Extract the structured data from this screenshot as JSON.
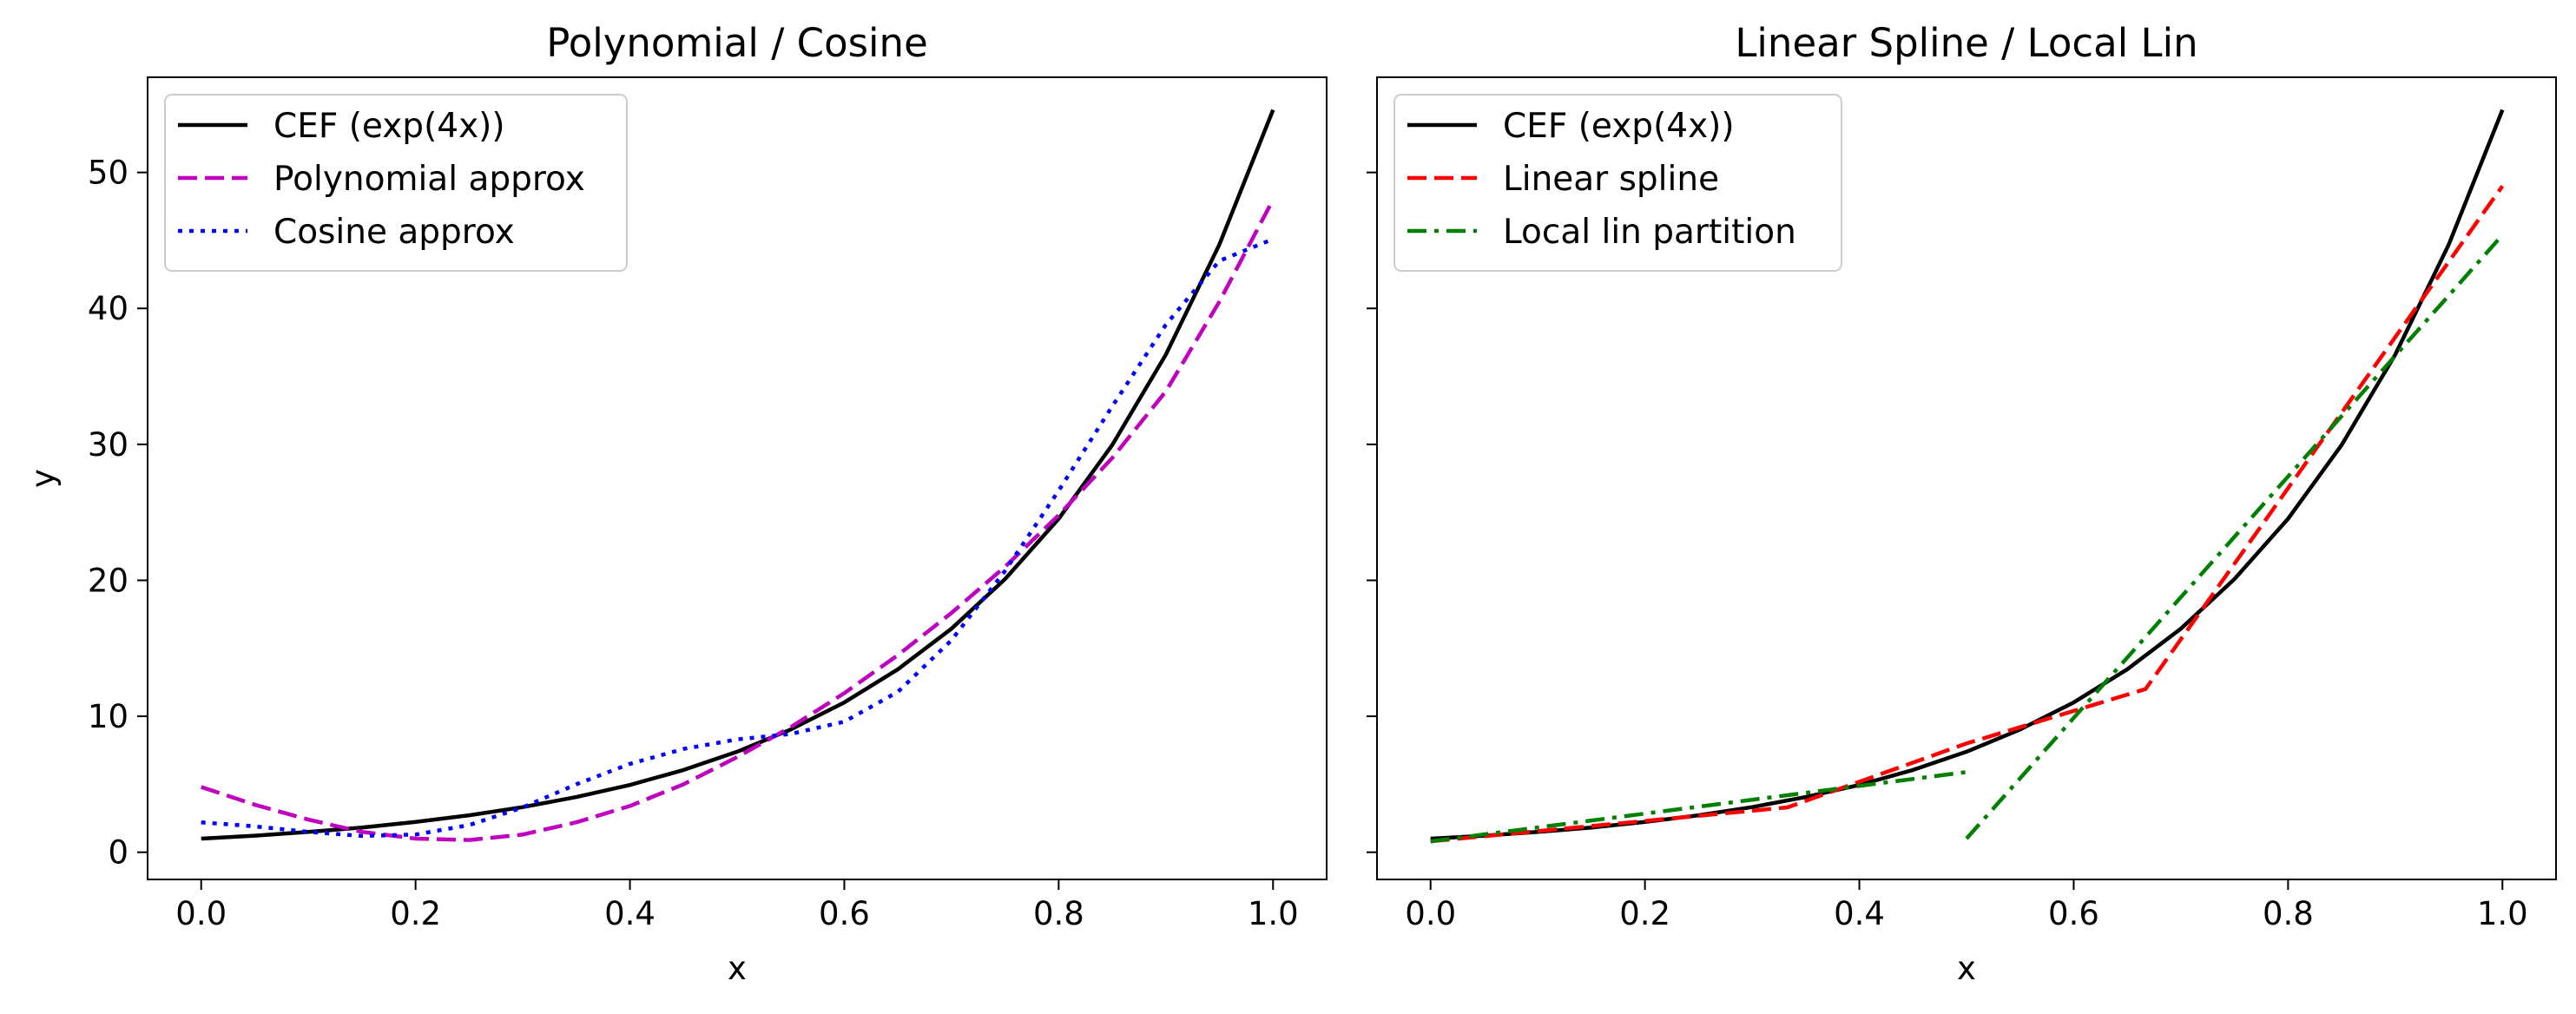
{
  "chart_data": [
    {
      "type": "line",
      "title": "Polynomial / Cosine",
      "xlabel": "x",
      "ylabel": "y",
      "xlim": [
        -0.05,
        1.05
      ],
      "ylim": [
        -2,
        57
      ],
      "xticks": [
        "0.0",
        "0.2",
        "0.4",
        "0.6",
        "0.8",
        "1.0"
      ],
      "yticks": [
        "0",
        "10",
        "20",
        "30",
        "40",
        "50"
      ],
      "grid": false,
      "legend_position": "top-left",
      "series": [
        {
          "name": "CEF (exp(4x))",
          "color": "#000000",
          "style": "solid",
          "x": [
            0,
            0.05,
            0.1,
            0.15,
            0.2,
            0.25,
            0.3,
            0.35,
            0.4,
            0.45,
            0.5,
            0.55,
            0.6,
            0.65,
            0.7,
            0.75,
            0.8,
            0.85,
            0.9,
            0.95,
            1.0
          ],
          "y": [
            1.0,
            1.22,
            1.49,
            1.82,
            2.23,
            2.72,
            3.32,
            4.06,
            4.95,
            6.05,
            7.39,
            9.03,
            11.02,
            13.46,
            16.44,
            20.09,
            24.53,
            29.96,
            36.6,
            44.7,
            54.6
          ]
        },
        {
          "name": "Polynomial approx",
          "color": "#bf00bf",
          "style": "dashed",
          "x": [
            0,
            0.05,
            0.1,
            0.15,
            0.2,
            0.25,
            0.3,
            0.35,
            0.4,
            0.45,
            0.5,
            0.55,
            0.6,
            0.65,
            0.7,
            0.75,
            0.8,
            0.85,
            0.9,
            0.95,
            1.0
          ],
          "y": [
            4.8,
            3.5,
            2.4,
            1.5,
            1.0,
            0.9,
            1.3,
            2.2,
            3.4,
            5.0,
            7.0,
            9.2,
            11.7,
            14.5,
            17.6,
            21.0,
            24.8,
            29.0,
            33.9,
            40.5,
            48.0
          ]
        },
        {
          "name": "Cosine approx",
          "color": "#0000ff",
          "style": "dotted",
          "x": [
            0,
            0.05,
            0.1,
            0.15,
            0.2,
            0.25,
            0.3,
            0.35,
            0.4,
            0.45,
            0.5,
            0.55,
            0.6,
            0.65,
            0.7,
            0.75,
            0.8,
            0.85,
            0.9,
            0.95,
            1.0
          ],
          "y": [
            2.2,
            1.9,
            1.5,
            1.2,
            1.3,
            2.0,
            3.3,
            5.0,
            6.5,
            7.6,
            8.3,
            8.7,
            9.6,
            11.8,
            15.6,
            20.7,
            26.6,
            32.8,
            38.8,
            43.5,
            45.1
          ]
        }
      ]
    },
    {
      "type": "line",
      "title": "Linear Spline / Local Lin",
      "xlabel": "x",
      "xlim": [
        -0.05,
        1.05
      ],
      "ylim": [
        -2,
        57
      ],
      "xticks": [
        "0.0",
        "0.2",
        "0.4",
        "0.6",
        "0.8",
        "1.0"
      ],
      "grid": false,
      "legend_position": "top-left",
      "series": [
        {
          "name": "CEF (exp(4x))",
          "color": "#000000",
          "style": "solid",
          "x": [
            0,
            0.05,
            0.1,
            0.15,
            0.2,
            0.25,
            0.3,
            0.35,
            0.4,
            0.45,
            0.5,
            0.55,
            0.6,
            0.65,
            0.7,
            0.75,
            0.8,
            0.85,
            0.9,
            0.95,
            1.0
          ],
          "y": [
            1.0,
            1.22,
            1.49,
            1.82,
            2.23,
            2.72,
            3.32,
            4.06,
            4.95,
            6.05,
            7.39,
            9.03,
            11.02,
            13.46,
            16.44,
            20.09,
            24.53,
            29.96,
            36.6,
            44.7,
            54.6
          ]
        },
        {
          "name": "Linear spline",
          "color": "#ff0000",
          "style": "dashed",
          "x": [
            0,
            0.333,
            0.5,
            0.667,
            1.0
          ],
          "y": [
            0.8,
            3.3,
            8.0,
            12.0,
            49.0
          ]
        },
        {
          "name": "Local lin partition",
          "color": "#008000",
          "style": "dashdot",
          "segments": [
            {
              "x": [
                0,
                0.5
              ],
              "y": [
                0.8,
                5.9
              ]
            },
            {
              "x": [
                0.5,
                1.0
              ],
              "y": [
                1.0,
                45.4
              ]
            }
          ]
        }
      ]
    }
  ]
}
